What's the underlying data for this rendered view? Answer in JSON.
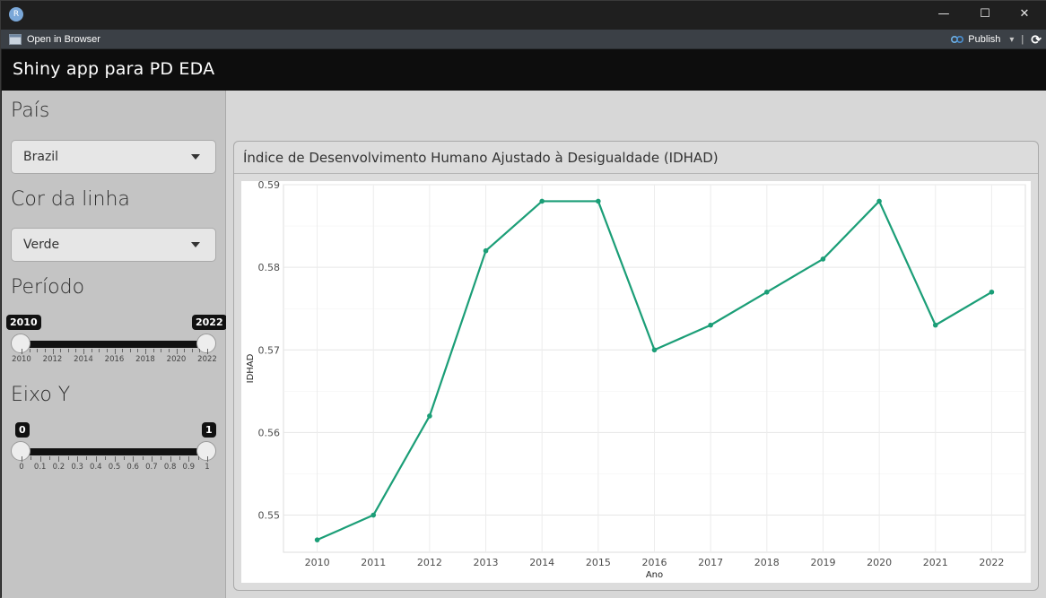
{
  "window": {
    "minimize_glyph": "—",
    "maximize_glyph": "☐",
    "close_glyph": "✕",
    "app_icon_letter": "R"
  },
  "toolbar": {
    "open_in_browser": "Open in Browser",
    "publish": "Publish",
    "publish_dropdown_glyph": "▾",
    "refresh_glyph": "⟳"
  },
  "app": {
    "title": "Shiny app para PD EDA"
  },
  "sidebar": {
    "country_label": "País",
    "country_value": "Brazil",
    "color_label": "Cor da linha",
    "color_value": "Verde",
    "period_label": "Período",
    "period_min": "2010",
    "period_max": "2022",
    "period_ticks": [
      "2010",
      "2012",
      "2014",
      "2016",
      "2018",
      "2020",
      "2022"
    ],
    "yaxis_label": "Eixo Y",
    "yaxis_min": "0",
    "yaxis_max": "1",
    "yaxis_ticks": [
      "0",
      "0.1",
      "0.2",
      "0.3",
      "0.4",
      "0.5",
      "0.6",
      "0.7",
      "0.8",
      "0.9",
      "1"
    ]
  },
  "panel": {
    "title": "Índice de Desenvolvimento Humano Ajustado à Desigualdade (IDHAD)"
  },
  "colors": {
    "line": "#1b9e77",
    "navbar": "#0d0d0d",
    "sidebar": "#c4c4c4"
  },
  "chart_data": {
    "type": "line",
    "title": "",
    "xlabel": "Ano",
    "ylabel": "IDHAD",
    "x": [
      2010,
      2011,
      2012,
      2013,
      2014,
      2015,
      2016,
      2017,
      2018,
      2019,
      2020,
      2021,
      2022
    ],
    "series": [
      {
        "values": [
          0.547,
          0.55,
          0.562,
          0.582,
          0.588,
          0.588,
          0.57,
          0.573,
          0.577,
          0.581,
          0.588,
          0.573,
          0.577
        ]
      }
    ],
    "y_ticks": [
      "0.55",
      "0.56",
      "0.57",
      "0.58",
      "0.59"
    ],
    "x_ticks": [
      "2010",
      "2011",
      "2012",
      "2013",
      "2014",
      "2015",
      "2016",
      "2017",
      "2018",
      "2019",
      "2020",
      "2021",
      "2022"
    ],
    "xlim": [
      2009.4,
      2022.6
    ],
    "ylim": [
      0.5455,
      0.59
    ],
    "grid": true,
    "markers": true
  }
}
